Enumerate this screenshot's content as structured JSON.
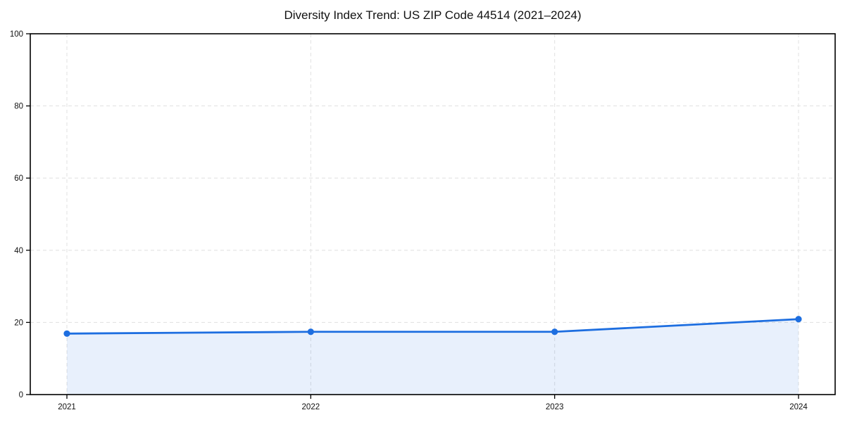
{
  "page": {
    "background": "#ffffff"
  },
  "chart_data": {
    "type": "area",
    "title": "Diversity Index Trend: US ZIP Code 44514 (2021–2024)",
    "x": [
      "2021",
      "2022",
      "2023",
      "2024"
    ],
    "series": [
      {
        "name": "Diversity Index",
        "values": [
          16.9,
          17.4,
          17.4,
          20.9
        ]
      }
    ],
    "xlabel": "",
    "ylabel": "",
    "ylim": [
      0,
      100
    ],
    "yticks": [
      0,
      20,
      40,
      60,
      80,
      100
    ],
    "grid": "dashed-both-axes",
    "legend": "none",
    "colors": {
      "line": "#1d6ee0",
      "marker": "#1d6ee0",
      "fill": "rgba(29,110,224,0.10)",
      "gridline": "#e3e3e3",
      "frame": "#000000",
      "text": "#111111"
    },
    "marker_style": "circle"
  }
}
